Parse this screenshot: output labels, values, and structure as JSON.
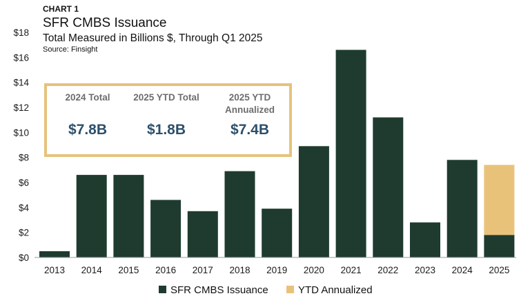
{
  "header": {
    "kicker": "CHART 1",
    "title": "SFR CMBS Issuance",
    "subtitle": "Total Measured in Billions $, Through Q1 2025",
    "source": "Source: Finsight"
  },
  "stats_box": {
    "items": [
      {
        "label_lines": [
          "2024 Total"
        ],
        "value": "$7.8B"
      },
      {
        "label_lines": [
          "2025 YTD Total"
        ],
        "value": "$1.8B"
      },
      {
        "label_lines": [
          "2025 YTD",
          "Annualized"
        ],
        "value": "$7.4B"
      }
    ]
  },
  "colors": {
    "issuance": "#1f3b2f",
    "ytd_annualized": "#e9c27a",
    "box_border": "#e6c27c",
    "value_text": "#2d4f6b"
  },
  "chart_data": {
    "type": "bar",
    "stacked": true,
    "categories": [
      "2013",
      "2014",
      "2015",
      "2016",
      "2017",
      "2018",
      "2019",
      "2020",
      "2021",
      "2022",
      "2023",
      "2024",
      "2025"
    ],
    "series": [
      {
        "name": "SFR CMBS Issuance",
        "values": [
          0.5,
          6.6,
          6.6,
          4.6,
          3.7,
          6.9,
          3.9,
          8.9,
          16.6,
          11.2,
          2.8,
          7.8,
          1.8
        ]
      },
      {
        "name": "YTD Annualized",
        "values": [
          0,
          0,
          0,
          0,
          0,
          0,
          0,
          0,
          0,
          0,
          0,
          0,
          5.6
        ]
      }
    ],
    "ylim": [
      0,
      18
    ],
    "yticks": [
      0,
      2,
      4,
      6,
      8,
      10,
      12,
      14,
      16,
      18
    ],
    "ytick_labels": [
      "$0",
      "$2",
      "$4",
      "$6",
      "$8",
      "$10",
      "$12",
      "$14",
      "$16",
      "$18"
    ],
    "grid": false,
    "legend_position": "bottom-center"
  }
}
